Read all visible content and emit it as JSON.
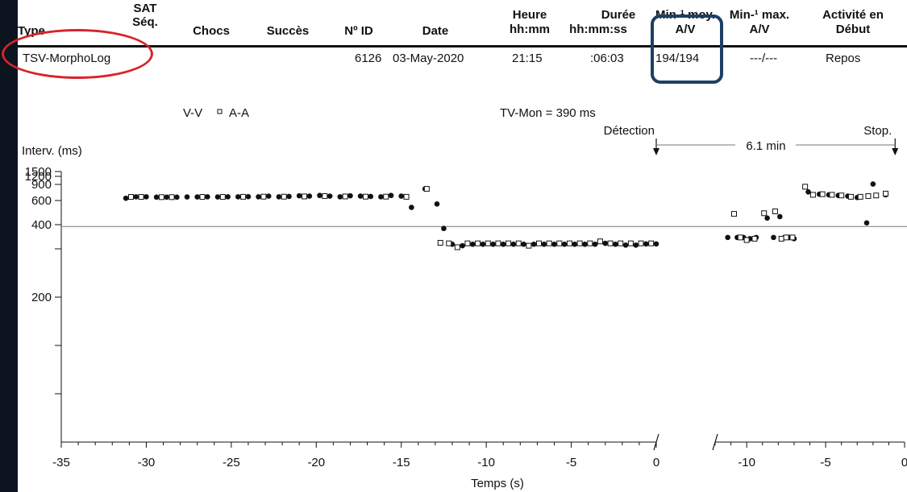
{
  "header": {
    "col_type": "Type",
    "col_sat": [
      "SAT",
      "Séq."
    ],
    "col_chocs": "Chocs",
    "col_succes": "Succès",
    "col_id": "Nº ID",
    "col_date": "Date",
    "col_heure": [
      "Heure",
      "hh:mm"
    ],
    "col_duree": [
      "Durée",
      "hh:mm:ss"
    ],
    "col_min_moy": [
      "Min-¹ moy.",
      "A/V"
    ],
    "col_min_max": [
      "Min-¹ max.",
      "A/V"
    ],
    "col_activite": [
      "Activité en",
      "Début"
    ]
  },
  "row": {
    "type": "TSV-MorphoLog",
    "id": "6126",
    "date": "03-May-2020",
    "heure": "21:15",
    "duree": ":06:03",
    "min_moy": "194/194",
    "min_max": "---/---",
    "activite": "Repos"
  },
  "colors": {
    "highlight_ellipse": "#d8232a",
    "highlight_box": "#1c3f66",
    "background_frame": "#0c1420",
    "marks": "#111111"
  },
  "chart_data": {
    "type": "scatter",
    "title": "",
    "ylabel": "Interv. (ms)",
    "xlabel": "Temps (s)",
    "legend": [
      {
        "name": "V-V",
        "marker": "filled-circle"
      },
      {
        "name": "A-A",
        "marker": "open-square"
      }
    ],
    "legend_placement": "top-left",
    "tv_mon_label": "TV-Mon = 390 ms",
    "reference_line_y": 390,
    "y_scale": "reciprocal",
    "yticks": [
      1500,
      1200,
      900,
      600,
      400,
      200
    ],
    "ylim": [
      100,
      1500
    ],
    "panels": [
      {
        "name": "pre-detection",
        "xlim": [
          -35,
          0
        ],
        "xticks": [
          -35,
          -30,
          -25,
          -20,
          -15,
          -10,
          -5,
          0
        ],
        "series": [
          {
            "name": "V-V",
            "points": [
              [
                -31.2,
                630
              ],
              [
                -30.6,
                650
              ],
              [
                -30.0,
                650
              ],
              [
                -29.4,
                645
              ],
              [
                -28.8,
                645
              ],
              [
                -28.2,
                645
              ],
              [
                -27.6,
                648
              ],
              [
                -27.0,
                648
              ],
              [
                -26.4,
                650
              ],
              [
                -25.8,
                648
              ],
              [
                -25.2,
                650
              ],
              [
                -24.6,
                650
              ],
              [
                -24.0,
                652
              ],
              [
                -23.4,
                650
              ],
              [
                -22.8,
                660
              ],
              [
                -22.2,
                650
              ],
              [
                -21.6,
                655
              ],
              [
                -21.0,
                665
              ],
              [
                -20.4,
                660
              ],
              [
                -19.8,
                670
              ],
              [
                -19.2,
                660
              ],
              [
                -18.6,
                650
              ],
              [
                -18.0,
                665
              ],
              [
                -17.4,
                660
              ],
              [
                -16.8,
                655
              ],
              [
                -16.2,
                650
              ],
              [
                -15.6,
                670
              ],
              [
                -15.0,
                660
              ],
              [
                -14.4,
                525
              ],
              [
                -13.6,
                790
              ],
              [
                -12.9,
                560
              ],
              [
                -12.5,
                380
              ],
              [
                -12.0,
                315
              ],
              [
                -11.4,
                310
              ],
              [
                -10.8,
                315
              ],
              [
                -10.2,
                315
              ],
              [
                -9.6,
                315
              ],
              [
                -9.0,
                315
              ],
              [
                -8.4,
                315
              ],
              [
                -7.8,
                315
              ],
              [
                -7.2,
                315
              ],
              [
                -6.6,
                315
              ],
              [
                -6.0,
                315
              ],
              [
                -5.4,
                315
              ],
              [
                -4.8,
                315
              ],
              [
                -4.2,
                315
              ],
              [
                -3.6,
                315
              ],
              [
                -3.0,
                318
              ],
              [
                -2.4,
                315
              ],
              [
                -1.8,
                312
              ],
              [
                -1.2,
                312
              ],
              [
                -0.6,
                316
              ],
              [
                0.0,
                316
              ]
            ]
          },
          {
            "name": "A-A",
            "points": [
              [
                -30.9,
                648
              ],
              [
                -30.3,
                648
              ],
              [
                -29.1,
                645
              ],
              [
                -28.5,
                645
              ],
              [
                -26.7,
                648
              ],
              [
                -25.5,
                648
              ],
              [
                -24.3,
                650
              ],
              [
                -23.1,
                652
              ],
              [
                -21.9,
                652
              ],
              [
                -20.7,
                655
              ],
              [
                -19.5,
                660
              ],
              [
                -18.3,
                655
              ],
              [
                -17.1,
                652
              ],
              [
                -15.9,
                652
              ],
              [
                -14.7,
                650
              ],
              [
                -13.5,
                790
              ],
              [
                -12.7,
                320
              ],
              [
                -12.2,
                318
              ],
              [
                -11.7,
                305
              ],
              [
                -11.1,
                318
              ],
              [
                -10.5,
                318
              ],
              [
                -9.9,
                318
              ],
              [
                -9.3,
                318
              ],
              [
                -8.7,
                318
              ],
              [
                -8.1,
                318
              ],
              [
                -7.5,
                310
              ],
              [
                -6.9,
                318
              ],
              [
                -6.3,
                318
              ],
              [
                -5.7,
                318
              ],
              [
                -5.1,
                318
              ],
              [
                -4.5,
                318
              ],
              [
                -3.9,
                318
              ],
              [
                -3.3,
                325
              ],
              [
                -2.7,
                318
              ],
              [
                -2.1,
                318
              ],
              [
                -1.5,
                318
              ],
              [
                -0.9,
                318
              ],
              [
                -0.3,
                318
              ]
            ]
          }
        ]
      },
      {
        "name": "post-detection",
        "xlim": [
          -12,
          0
        ],
        "xticks": [
          -10,
          -5,
          0
        ],
        "series": [
          {
            "name": "V-V",
            "points": [
              [
                -11.2,
                340
              ],
              [
                -10.6,
                340
              ],
              [
                -10.2,
                340
              ],
              [
                -9.8,
                335
              ],
              [
                -9.4,
                340
              ],
              [
                -8.7,
                440
              ],
              [
                -8.3,
                340
              ],
              [
                -7.9,
                450
              ],
              [
                -7.6,
                340
              ],
              [
                -7.3,
                340
              ],
              [
                -7.0,
                335
              ],
              [
                -6.1,
                730
              ],
              [
                -5.4,
                690
              ],
              [
                -4.8,
                680
              ],
              [
                -4.2,
                670
              ],
              [
                -3.6,
                660
              ],
              [
                -3.0,
                640
              ],
              [
                -2.4,
                410
              ],
              [
                -2.0,
                910
              ],
              [
                -1.2,
                680
              ]
            ]
          },
          {
            "name": "A-A",
            "points": [
              [
                -10.8,
                470
              ],
              [
                -10.4,
                340
              ],
              [
                -10.0,
                330
              ],
              [
                -9.5,
                335
              ],
              [
                -8.9,
                475
              ],
              [
                -8.2,
                490
              ],
              [
                -7.8,
                335
              ],
              [
                -7.5,
                340
              ],
              [
                -7.1,
                340
              ],
              [
                -6.3,
                840
              ],
              [
                -5.8,
                680
              ],
              [
                -5.2,
                690
              ],
              [
                -4.6,
                680
              ],
              [
                -4.0,
                670
              ],
              [
                -3.4,
                650
              ],
              [
                -2.8,
                650
              ],
              [
                -2.3,
                660
              ],
              [
                -1.8,
                670
              ],
              [
                -1.2,
                700
              ]
            ]
          }
        ]
      }
    ],
    "annotations": {
      "detection": "Détection",
      "stop": "Stop.",
      "duration": "6.1 min"
    }
  }
}
